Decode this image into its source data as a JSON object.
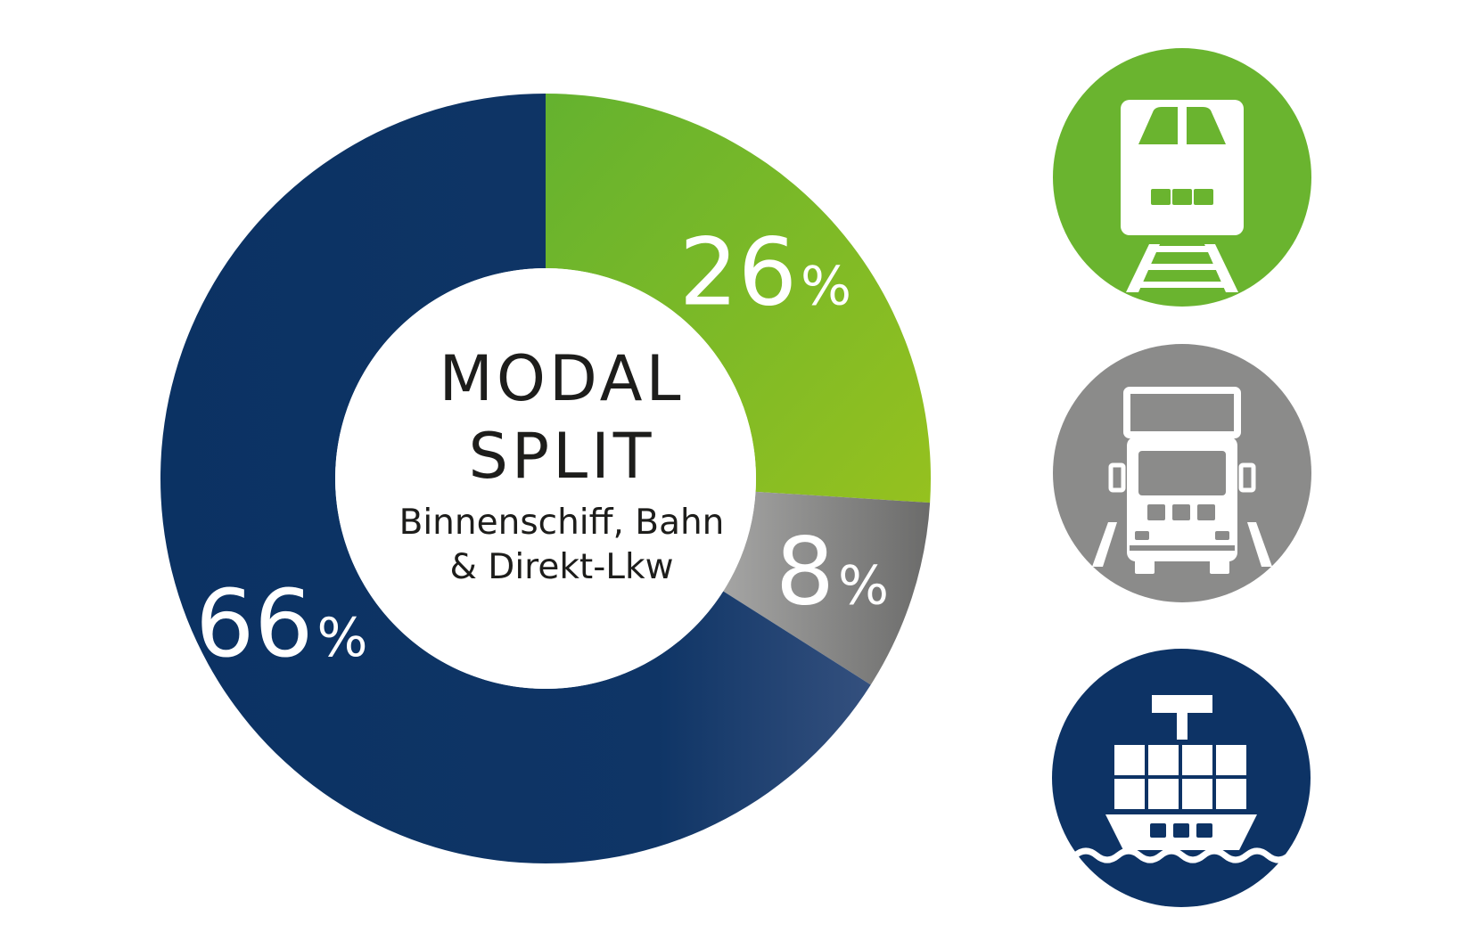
{
  "chart_data": {
    "type": "pie",
    "variant": "donut",
    "title_line1": "MODAL",
    "title_line2": "SPLIT",
    "subtitle_line1": "Binnenschiff, Bahn",
    "subtitle_line2": "& Direkt-Lkw",
    "slices": [
      {
        "value": 26,
        "label_number": "26",
        "label_unit": "%",
        "color_start": "#64b22f",
        "color_end": "#95c11f",
        "icon": "train-icon"
      },
      {
        "value": 8,
        "label_number": "8",
        "label_unit": "%",
        "color_start": "#9d9d9c",
        "color_end": "#6f6f6e",
        "icon": "truck-icon"
      },
      {
        "value": 66,
        "label_number": "66",
        "label_unit": "%",
        "color_start": "#0b3263",
        "color_end": "#32507e",
        "icon": "container-ship-icon"
      }
    ],
    "start_angle_deg": 0,
    "direction": "clockwise"
  },
  "icons": [
    {
      "name": "train-icon",
      "color": "#6ab42f"
    },
    {
      "name": "truck-icon",
      "color": "#8b8b8a"
    },
    {
      "name": "container-ship-icon",
      "color": "#0d3365"
    }
  ]
}
